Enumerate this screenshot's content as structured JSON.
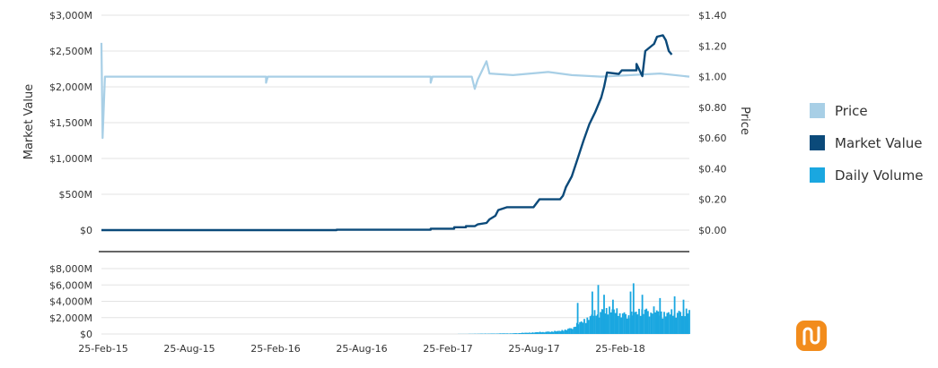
{
  "colors": {
    "price": "#a8cfe6",
    "market_value": "#0b4a7a",
    "daily_volume": "#1aa7e0",
    "grid": "#e3e3e3",
    "logo": "#f28c1c"
  },
  "logo": {
    "icon": "coin-logo-icon"
  },
  "chart_data": [
    {
      "type": "line",
      "title": "",
      "xlabel": "",
      "ylabel": "Market Value",
      "ylabel_right": "Price",
      "x_ticks": [
        "25-Feb-15",
        "25-Aug-15",
        "25-Feb-16",
        "25-Aug-16",
        "25-Feb-17",
        "25-Aug-17",
        "25-Feb-18"
      ],
      "y_left": {
        "ticks": [
          "$3,000M",
          "$2,500M",
          "$2,000M",
          "$1,500M",
          "$1,000M",
          "$500M",
          "$0"
        ],
        "range": [
          0,
          3000
        ]
      },
      "y_right": {
        "ticks": [
          "$1.40",
          "$1.20",
          "$1.00",
          "$0.80",
          "$0.60",
          "$0.40",
          "$0.20",
          "$0.00"
        ],
        "range": [
          0,
          1.4
        ]
      },
      "series": [
        {
          "name": "Market Value",
          "axis": "left",
          "points": [
            [
              0,
              0
            ],
            [
              0.4,
              0
            ],
            [
              0.4,
              5
            ],
            [
              0.56,
              5
            ],
            [
              0.56,
              20
            ],
            [
              0.6,
              20
            ],
            [
              0.6,
              40
            ],
            [
              0.62,
              40
            ],
            [
              0.62,
              55
            ],
            [
              0.635,
              55
            ],
            [
              0.64,
              80
            ],
            [
              0.655,
              100
            ],
            [
              0.66,
              150
            ],
            [
              0.67,
              200
            ],
            [
              0.675,
              280
            ],
            [
              0.69,
              320
            ],
            [
              0.735,
              320
            ],
            [
              0.745,
              430
            ],
            [
              0.78,
              430
            ],
            [
              0.785,
              480
            ],
            [
              0.79,
              600
            ],
            [
              0.8,
              750
            ],
            [
              0.81,
              1000
            ],
            [
              0.82,
              1250
            ],
            [
              0.83,
              1480
            ],
            [
              0.84,
              1650
            ],
            [
              0.85,
              1850
            ],
            [
              0.855,
              2000
            ],
            [
              0.86,
              2200
            ],
            [
              0.88,
              2180
            ],
            [
              0.885,
              2230
            ],
            [
              0.91,
              2230
            ],
            [
              0.91,
              2320
            ],
            [
              0.92,
              2150
            ],
            [
              0.925,
              2500
            ],
            [
              0.94,
              2600
            ],
            [
              0.945,
              2700
            ],
            [
              0.955,
              2720
            ],
            [
              0.96,
              2650
            ],
            [
              0.965,
              2500
            ],
            [
              0.97,
              2450
            ]
          ]
        },
        {
          "name": "Price",
          "axis": "right",
          "points": [
            [
              0,
              1.22
            ],
            [
              0.002,
              0.6
            ],
            [
              0.006,
              1.0
            ],
            [
              0.28,
              1.0
            ],
            [
              0.28,
              0.96
            ],
            [
              0.283,
              1.0
            ],
            [
              0.56,
              1.0
            ],
            [
              0.56,
              0.96
            ],
            [
              0.563,
              1.0
            ],
            [
              0.63,
              1.0
            ],
            [
              0.635,
              0.92
            ],
            [
              0.64,
              0.98
            ],
            [
              0.645,
              1.02
            ],
            [
              0.655,
              1.1
            ],
            [
              0.66,
              1.02
            ],
            [
              0.7,
              1.01
            ],
            [
              0.76,
              1.03
            ],
            [
              0.8,
              1.01
            ],
            [
              0.85,
              1.0
            ],
            [
              0.9,
              1.01
            ],
            [
              0.95,
              1.02
            ],
            [
              1.0,
              1.0
            ]
          ]
        }
      ],
      "legend": [
        "Price",
        "Market Value",
        "Daily Volume"
      ]
    },
    {
      "type": "bar",
      "name": "Daily Volume",
      "y_ticks": [
        "$8,000M",
        "$6,000M",
        "$4,000M",
        "$2,000M",
        "$0"
      ],
      "y_range": [
        0,
        8000
      ],
      "x_ticks": [
        "25-Feb-15",
        "25-Aug-15",
        "25-Feb-16",
        "25-Aug-16",
        "25-Feb-17",
        "25-Aug-17",
        "25-Feb-18"
      ],
      "series": [
        {
          "name": "Daily Volume",
          "envelope": [
            [
              0.6,
              0
            ],
            [
              0.65,
              50
            ],
            [
              0.7,
              100
            ],
            [
              0.74,
              250
            ],
            [
              0.78,
              450
            ],
            [
              0.8,
              900
            ],
            [
              0.82,
              2000
            ],
            [
              0.84,
              3000
            ],
            [
              0.86,
              3800
            ],
            [
              0.88,
              3200
            ],
            [
              0.9,
              2800
            ],
            [
              0.92,
              3600
            ],
            [
              0.94,
              3400
            ],
            [
              0.96,
              3000
            ],
            [
              0.98,
              3200
            ],
            [
              1.0,
              3400
            ]
          ],
          "spikes": [
            [
              0.81,
              3800
            ],
            [
              0.835,
              5200
            ],
            [
              0.845,
              6000
            ],
            [
              0.855,
              4800
            ],
            [
              0.87,
              4200
            ],
            [
              0.9,
              5200
            ],
            [
              0.905,
              6200
            ],
            [
              0.92,
              4800
            ],
            [
              0.95,
              4400
            ],
            [
              0.975,
              4600
            ],
            [
              0.99,
              4200
            ]
          ]
        }
      ]
    }
  ]
}
